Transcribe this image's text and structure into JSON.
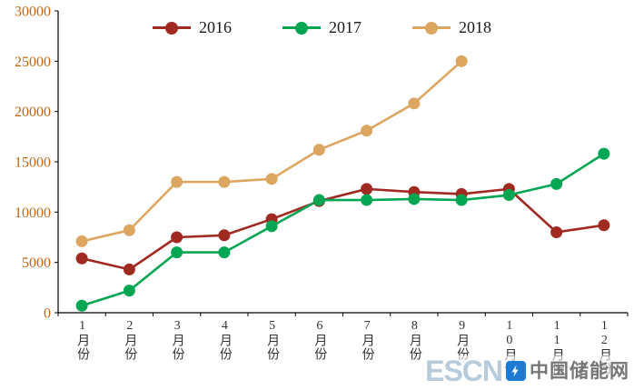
{
  "chart_data": {
    "type": "line",
    "title": "",
    "xlabel": "",
    "ylabel": "",
    "categories": [
      "1月份",
      "2月份",
      "3月份",
      "4月份",
      "5月份",
      "6月份",
      "7月份",
      "8月份",
      "9月份",
      "10月份",
      "11月份",
      "12月份"
    ],
    "series": [
      {
        "name": "2016",
        "color": "#a02a22",
        "values": [
          5400,
          4300,
          7500,
          7700,
          9300,
          11100,
          12300,
          12000,
          11800,
          12300,
          8000,
          8700
        ]
      },
      {
        "name": "2017",
        "color": "#00a651",
        "values": [
          700,
          2200,
          6000,
          6000,
          8600,
          11200,
          11200,
          11300,
          11200,
          11700,
          12800,
          15800
        ]
      },
      {
        "name": "2018",
        "color": "#dca660",
        "values": [
          7100,
          8200,
          13000,
          13000,
          13300,
          16200,
          18100,
          20800,
          25000
        ]
      }
    ],
    "ylim": [
      0,
      30000
    ],
    "ytick_step": 5000,
    "grid": false,
    "legend_position": "top"
  },
  "colors": {
    "y_tick": "#c0650f",
    "x_tick": "#333333",
    "axis": "#000000",
    "background": "#ffffff"
  },
  "watermark": {
    "escn": "ESCN",
    "site": "中国储能网"
  }
}
